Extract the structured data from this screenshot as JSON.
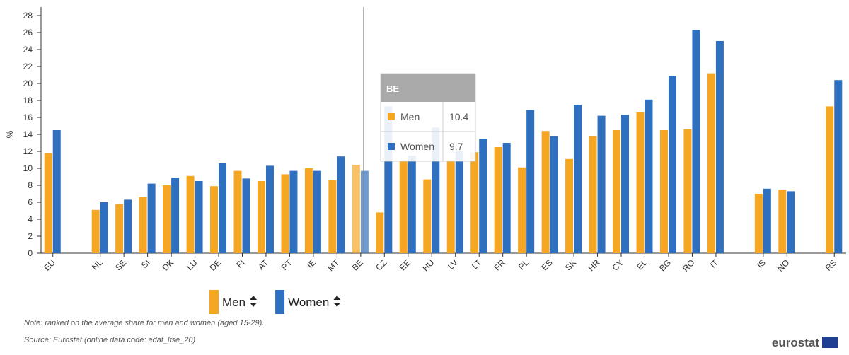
{
  "chart_data": {
    "type": "bar",
    "y_label": "%",
    "categories": [
      "EU",
      null,
      "NL",
      "SE",
      "SI",
      "DK",
      "LU",
      "DE",
      "FI",
      "AT",
      "PT",
      "IE",
      "MT",
      "BE",
      "CZ",
      "EE",
      "HU",
      "LV",
      "LT",
      "FR",
      "PL",
      "ES",
      "SK",
      "HR",
      "CY",
      "EL",
      "BG",
      "RO",
      "IT",
      null,
      "IS",
      "NO",
      null,
      "RS"
    ],
    "series": [
      {
        "name": "Men",
        "color": "#f5a623",
        "values": [
          11.8,
          null,
          5.1,
          5.8,
          6.6,
          8.0,
          9.1,
          7.9,
          9.7,
          8.5,
          9.3,
          10.0,
          8.6,
          10.4,
          4.8,
          11.0,
          8.7,
          11.0,
          11.9,
          12.5,
          10.1,
          14.4,
          11.1,
          13.8,
          14.5,
          16.6,
          14.5,
          14.6,
          21.2,
          null,
          7.0,
          7.5,
          null,
          17.3
        ]
      },
      {
        "name": "Women",
        "color": "#2e6fbf",
        "values": [
          14.5,
          null,
          6.0,
          6.3,
          8.2,
          8.9,
          8.5,
          10.6,
          8.8,
          10.3,
          9.7,
          9.7,
          11.4,
          9.7,
          17.3,
          11.5,
          14.8,
          12.0,
          13.5,
          13.0,
          16.9,
          13.8,
          17.5,
          16.2,
          16.3,
          18.1,
          20.9,
          26.3,
          25.0,
          null,
          7.6,
          7.3,
          null,
          20.4
        ]
      }
    ],
    "ylim": [
      0,
      29
    ],
    "yticks": [
      0,
      2,
      4,
      6,
      8,
      10,
      12,
      14,
      16,
      18,
      20,
      22,
      24,
      26,
      28
    ],
    "tooltip": {
      "title": "BE",
      "rows": [
        {
          "name": "Men",
          "value": 10.4
        },
        {
          "name": "Women",
          "value": 9.7
        }
      ]
    },
    "note": "Note: ranked on the average share for men and women (aged 15-29).",
    "source": "Source: Eurostat (online data code: edat_lfse_20)",
    "logo": "eurostat"
  }
}
